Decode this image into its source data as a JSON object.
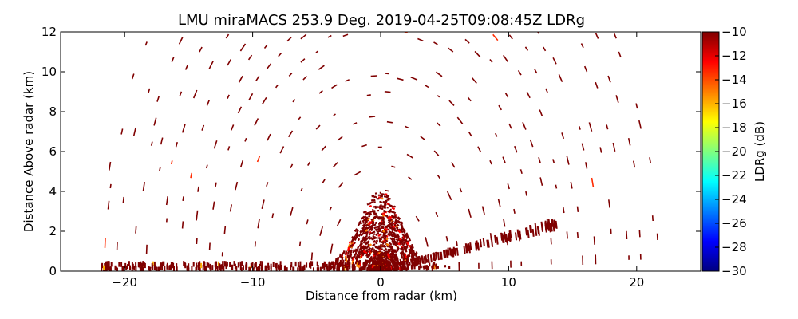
{
  "chart_data": {
    "type": "heatmap",
    "subtype": "radar-rhi-scan",
    "title": "LMU miraMACS 253.9 Deg. 2019-04-25T09:08:45Z  LDRg",
    "xlabel": "Distance from radar (km)",
    "ylabel": "Distance Above radar  (km)",
    "xlim": [
      -25,
      25
    ],
    "ylim": [
      0,
      12
    ],
    "xticks": [
      -20,
      -10,
      0,
      10,
      20
    ],
    "yticks": [
      0,
      2,
      4,
      6,
      8,
      10,
      12
    ],
    "colorbar": {
      "label": "LDRg (dB)",
      "range": [
        -30,
        -10
      ],
      "ticks": [
        -10,
        -12,
        -14,
        -16,
        -18,
        -20,
        -22,
        -24,
        -26,
        -28,
        -30
      ],
      "colormap": "jet",
      "colors": [
        "#00007f",
        "#0000ff",
        "#007fff",
        "#00ffff",
        "#7fff7f",
        "#ffff00",
        "#ff7f00",
        "#ff0000",
        "#7f0000"
      ]
    },
    "scan": {
      "elevation_min_deg": 2,
      "elevation_max_deg": 178,
      "max_range_km": 21.6,
      "dense_region_top_km": 3.6,
      "dominant_value_db": -10
    }
  }
}
